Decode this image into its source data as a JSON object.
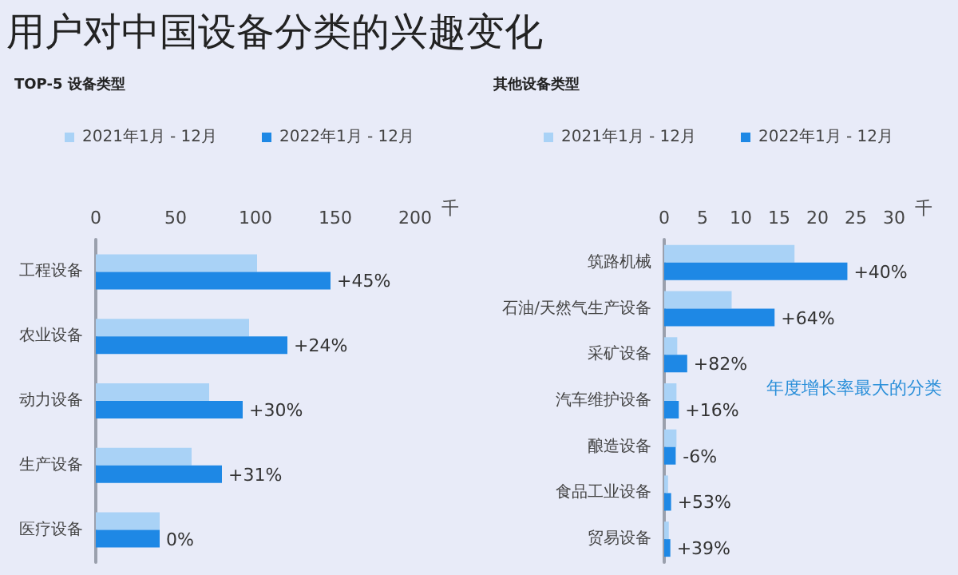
{
  "chart_data": [
    {
      "type": "bar",
      "orientation": "horizontal",
      "title": "用户对中国设备分类的兴趣变化",
      "subtitle": "TOP-5 设备类型",
      "xlabel": "千",
      "categories": [
        "工程设备",
        "农业设备",
        "动力设备",
        "生产设备",
        "医疗设备"
      ],
      "series": [
        {
          "name": "2021年1月 - 12月",
          "color": "#a9d2f6",
          "values": [
            101,
            96,
            71,
            60,
            40
          ]
        },
        {
          "name": "2022年1月 - 12月",
          "color": "#1e88e5",
          "values": [
            147,
            120,
            92,
            79,
            40
          ]
        }
      ],
      "xlim": [
        0,
        200
      ],
      "xticks": [
        0,
        50,
        100,
        150,
        200
      ],
      "grid": false,
      "legend": "top",
      "annotations": [
        {
          "text": "+45%",
          "x": 147,
          "y": "工程设备"
        },
        {
          "text": "+24%",
          "x": 120,
          "y": "农业设备"
        },
        {
          "text": "+30%",
          "x": 92,
          "y": "动力设备"
        },
        {
          "text": "+31%",
          "x": 79,
          "y": "生产设备"
        },
        {
          "text": "0%",
          "x": 40,
          "y": "医疗设备"
        }
      ]
    },
    {
      "type": "bar",
      "orientation": "horizontal",
      "subtitle": "其他设备类型",
      "xlabel": "千",
      "categories": [
        "筑路机械",
        "石油/天然气生产设备",
        "采矿设备",
        "汽车维护设备",
        "酿造设备",
        "食品工业设备",
        "贸易设备"
      ],
      "series": [
        {
          "name": "2021年1月 - 12月",
          "color": "#a9d2f6",
          "values": [
            17,
            8.8,
            1.7,
            1.6,
            1.6,
            0.5,
            0.6
          ]
        },
        {
          "name": "2022年1月 - 12月",
          "color": "#1e88e5",
          "values": [
            23.9,
            14.4,
            3,
            1.9,
            1.5,
            0.9,
            0.8
          ]
        }
      ],
      "xlim": [
        0,
        30
      ],
      "xticks": [
        0,
        5,
        10,
        15,
        20,
        25,
        30
      ],
      "grid": false,
      "legend": "top",
      "annotations": [
        {
          "text": "+40%",
          "x": 23.9,
          "y": "筑路机械"
        },
        {
          "text": "+64%",
          "x": 14.4,
          "y": "石油/天然气生产设备"
        },
        {
          "text": "+82%",
          "x": 3,
          "y": "采矿设备"
        },
        {
          "text": "+16%",
          "x": 1.9,
          "y": "汽车维护设备"
        },
        {
          "text": "-6%",
          "x": 1.6,
          "y": "酿造设备"
        },
        {
          "text": "+53%",
          "x": 0.9,
          "y": "食品工业设备"
        },
        {
          "text": "+39%",
          "x": 0.8,
          "y": "贸易设备"
        },
        "年度增长率最大的分类"
      ]
    }
  ]
}
